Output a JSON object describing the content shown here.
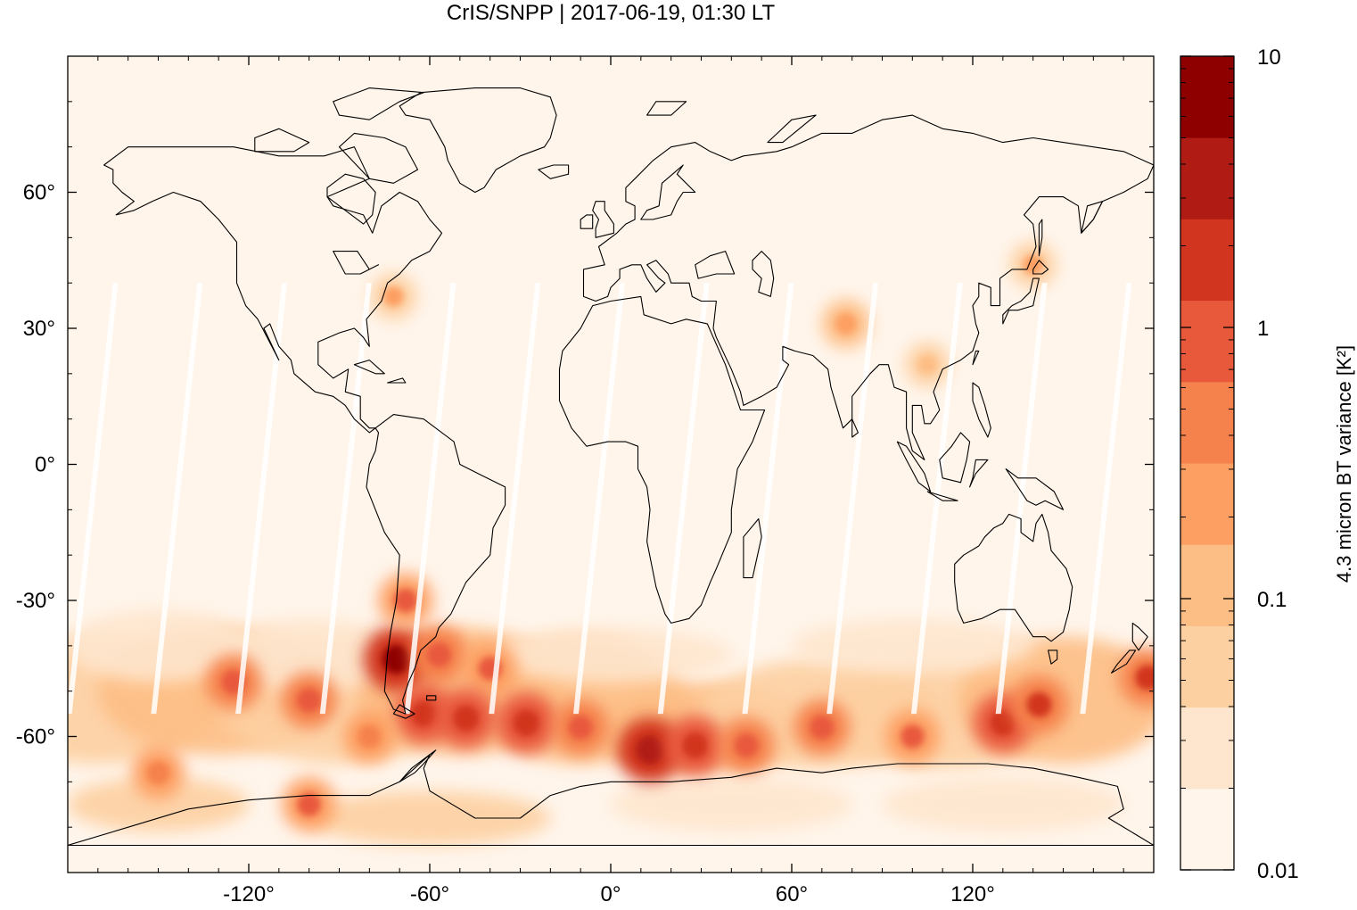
{
  "title": "CrIS/SNPP | 2017-06-19, 01:30 LT",
  "map": {
    "lon_range": [
      -180,
      180
    ],
    "lat_range": [
      -90,
      90
    ],
    "x_ticks": [
      {
        "value": -120,
        "label": "-120°"
      },
      {
        "value": -60,
        "label": "-60°"
      },
      {
        "value": 0,
        "label": "0°"
      },
      {
        "value": 60,
        "label": "60°"
      },
      {
        "value": 120,
        "label": "120°"
      }
    ],
    "y_ticks": [
      {
        "value": 60,
        "label": "60°"
      },
      {
        "value": 30,
        "label": "30°"
      },
      {
        "value": 0,
        "label": "0°"
      },
      {
        "value": -30,
        "label": "-30°"
      },
      {
        "value": -60,
        "label": "-60°"
      }
    ],
    "background_color": "#fff5eb",
    "coastline_color": "#000000"
  },
  "colorbar": {
    "label": "4.3 micron BT variance [K²]",
    "scale": "log",
    "range": [
      0.01,
      10
    ],
    "tick_labels": [
      {
        "value": 10,
        "label": "10"
      },
      {
        "value": 1,
        "label": "1"
      },
      {
        "value": 0.1,
        "label": "0.1"
      },
      {
        "value": 0.01,
        "label": "0.01"
      }
    ],
    "colors": [
      "#fff5eb",
      "#fee6ce",
      "#fdd0a2",
      "#fdbe85",
      "#fd9f62",
      "#f5814c",
      "#e8593c",
      "#d1341f",
      "#b01c14",
      "#8e0000"
    ]
  },
  "chart_data": {
    "type": "heatmap",
    "title": "CrIS/SNPP | 2017-06-19, 01:30 LT",
    "xlabel": "",
    "ylabel": "",
    "xlim": [
      -180,
      180
    ],
    "ylim": [
      -90,
      90
    ],
    "colorbar_label": "4.3 micron BT variance [K²]",
    "color_scale": "log",
    "color_range": [
      0.01,
      10
    ],
    "hotspots": [
      {
        "lon": -71,
        "lat": -43,
        "value": 6.0
      },
      {
        "lon": -68,
        "lat": -30,
        "value": 0.8
      },
      {
        "lon": -57,
        "lat": -42,
        "value": 1.2
      },
      {
        "lon": -40,
        "lat": -45,
        "value": 0.8
      },
      {
        "lon": -62,
        "lat": -55,
        "value": 2.0
      },
      {
        "lon": -48,
        "lat": -56,
        "value": 2.0
      },
      {
        "lon": -28,
        "lat": -57,
        "value": 2.5
      },
      {
        "lon": -10,
        "lat": -58,
        "value": 1.0
      },
      {
        "lon": 13,
        "lat": -63,
        "value": 5.0
      },
      {
        "lon": 28,
        "lat": -62,
        "value": 2.0
      },
      {
        "lon": 45,
        "lat": -62,
        "value": 1.0
      },
      {
        "lon": 70,
        "lat": -58,
        "value": 1.0
      },
      {
        "lon": 100,
        "lat": -60,
        "value": 0.8
      },
      {
        "lon": 130,
        "lat": -57,
        "value": 2.0
      },
      {
        "lon": 142,
        "lat": -53,
        "value": 1.5
      },
      {
        "lon": -125,
        "lat": -48,
        "value": 1.0
      },
      {
        "lon": -100,
        "lat": -52,
        "value": 1.0
      },
      {
        "lon": -150,
        "lat": -68,
        "value": 0.6
      },
      {
        "lon": -100,
        "lat": -75,
        "value": 0.8
      },
      {
        "lon": -80,
        "lat": -60,
        "value": 0.6
      },
      {
        "lon": 78,
        "lat": 31,
        "value": 0.3
      },
      {
        "lon": -72,
        "lat": 37,
        "value": 0.2
      },
      {
        "lon": 140,
        "lat": 44,
        "value": 0.2
      },
      {
        "lon": 178,
        "lat": -47,
        "value": 1.5
      },
      {
        "lon": 105,
        "lat": 22,
        "value": 0.15
      }
    ]
  }
}
